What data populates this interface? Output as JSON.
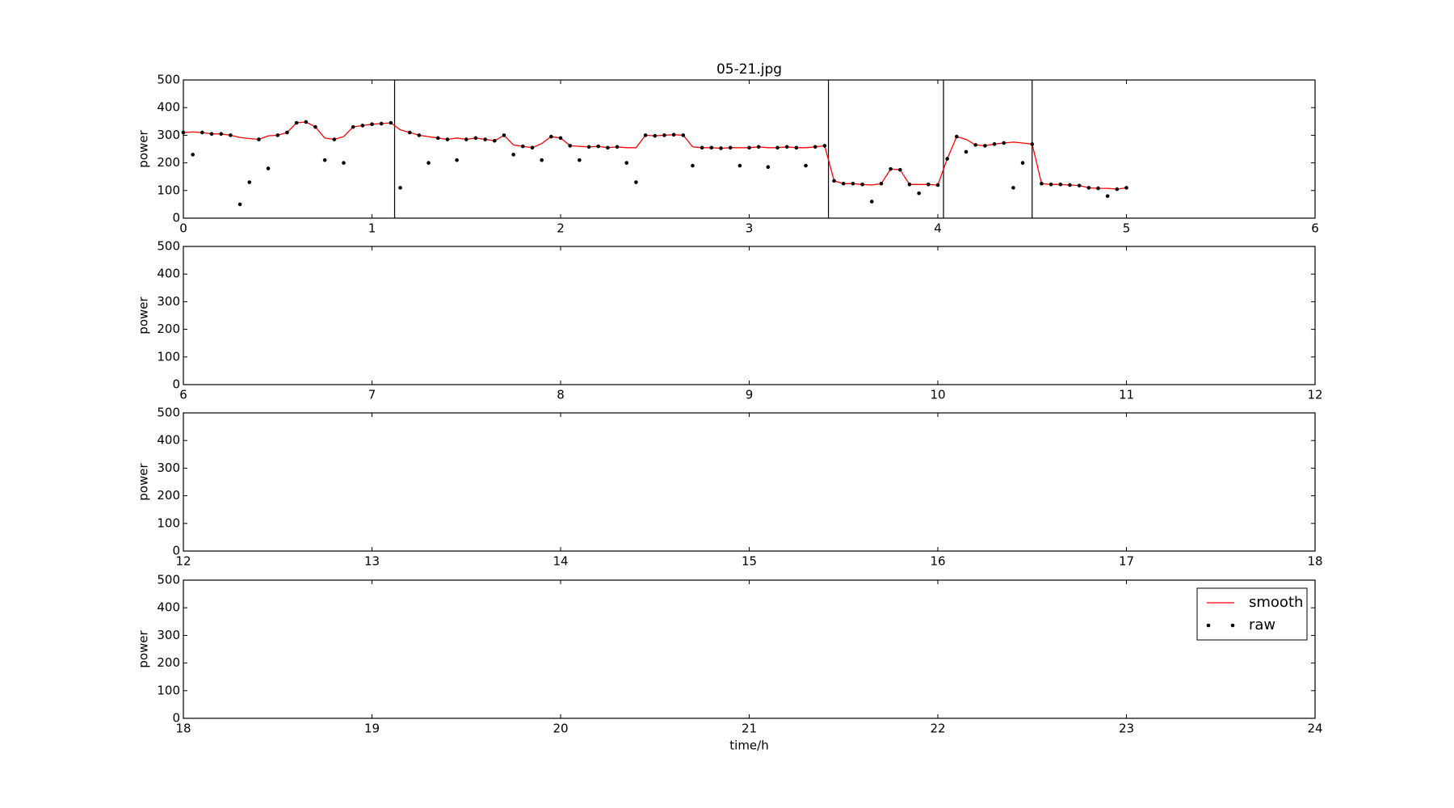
{
  "chart_data": [
    {
      "type": "line",
      "title": "05-21.jpg",
      "ylabel": "power",
      "xlim": [
        0,
        6
      ],
      "xticks": [
        0,
        1,
        2,
        3,
        4,
        5,
        6
      ],
      "ylim": [
        0,
        500
      ],
      "yticks": [
        0,
        100,
        200,
        300,
        400,
        500
      ],
      "x": [
        0,
        0.05,
        0.1,
        0.15,
        0.2,
        0.25,
        0.3,
        0.35,
        0.4,
        0.45,
        0.5,
        0.55,
        0.6,
        0.65,
        0.7,
        0.75,
        0.8,
        0.85,
        0.9,
        0.95,
        1.0,
        1.05,
        1.1,
        1.15,
        1.2,
        1.25,
        1.3,
        1.35,
        1.4,
        1.45,
        1.5,
        1.55,
        1.6,
        1.65,
        1.7,
        1.75,
        1.8,
        1.85,
        1.9,
        1.95,
        2.0,
        2.05,
        2.1,
        2.15,
        2.2,
        2.25,
        2.3,
        2.35,
        2.4,
        2.45,
        2.5,
        2.55,
        2.6,
        2.65,
        2.7,
        2.75,
        2.8,
        2.85,
        2.9,
        2.95,
        3.0,
        3.05,
        3.1,
        3.15,
        3.2,
        3.25,
        3.3,
        3.35,
        3.4,
        3.45,
        3.5,
        3.55,
        3.6,
        3.65,
        3.7,
        3.75,
        3.8,
        3.85,
        3.9,
        3.95,
        4.0,
        4.05,
        4.1,
        4.15,
        4.2,
        4.25,
        4.3,
        4.35,
        4.4,
        4.45,
        4.5,
        4.55,
        4.6,
        4.65,
        4.7,
        4.75,
        4.8,
        4.85,
        4.9,
        4.95,
        5.0
      ],
      "series": [
        {
          "name": "smooth",
          "color": "#ff0000",
          "style": "line",
          "values": [
            310,
            312,
            310,
            305,
            305,
            300,
            292,
            288,
            285,
            298,
            300,
            310,
            345,
            348,
            330,
            290,
            285,
            295,
            330,
            335,
            340,
            342,
            345,
            320,
            310,
            300,
            295,
            290,
            285,
            290,
            285,
            290,
            285,
            280,
            300,
            265,
            260,
            255,
            270,
            295,
            290,
            262,
            260,
            258,
            260,
            255,
            258,
            255,
            255,
            300,
            298,
            300,
            302,
            300,
            258,
            255,
            255,
            253,
            255,
            255,
            255,
            258,
            255,
            255,
            258,
            255,
            255,
            258,
            262,
            135,
            125,
            125,
            122,
            120,
            125,
            178,
            175,
            122,
            122,
            122,
            120,
            215,
            295,
            285,
            265,
            262,
            268,
            272,
            275,
            272,
            268,
            125,
            122,
            122,
            120,
            118,
            110,
            108,
            108,
            105,
            110
          ]
        },
        {
          "name": "raw",
          "color": "#000000",
          "style": "points",
          "values": [
            310,
            230,
            310,
            305,
            305,
            300,
            50,
            130,
            285,
            180,
            300,
            310,
            345,
            348,
            330,
            210,
            285,
            200,
            330,
            335,
            340,
            342,
            345,
            110,
            310,
            300,
            200,
            290,
            285,
            210,
            285,
            290,
            285,
            280,
            300,
            230,
            260,
            255,
            210,
            295,
            290,
            262,
            210,
            258,
            260,
            255,
            258,
            200,
            130,
            300,
            298,
            300,
            302,
            300,
            190,
            255,
            255,
            253,
            255,
            190,
            255,
            258,
            185,
            255,
            258,
            255,
            190,
            258,
            262,
            135,
            125,
            125,
            122,
            60,
            125,
            178,
            175,
            122,
            90,
            122,
            120,
            215,
            295,
            240,
            265,
            262,
            268,
            272,
            110,
            200,
            268,
            125,
            122,
            122,
            120,
            118,
            110,
            108,
            80,
            105,
            110
          ]
        }
      ],
      "vlines": [
        1.12,
        3.42,
        4.03,
        4.5
      ]
    },
    {
      "type": "line",
      "ylabel": "power",
      "xlim": [
        6,
        12
      ],
      "xticks": [
        6,
        7,
        8,
        9,
        10,
        11,
        12
      ],
      "ylim": [
        0,
        500
      ],
      "yticks": [
        0,
        100,
        200,
        300,
        400,
        500
      ]
    },
    {
      "type": "line",
      "ylabel": "power",
      "xlim": [
        12,
        18
      ],
      "xticks": [
        12,
        13,
        14,
        15,
        16,
        17,
        18
      ],
      "ylim": [
        0,
        500
      ],
      "yticks": [
        0,
        100,
        200,
        300,
        400,
        500
      ]
    },
    {
      "type": "line",
      "ylabel": "power",
      "xlabel": "time/h",
      "xlim": [
        18,
        24
      ],
      "xticks": [
        18,
        19,
        20,
        21,
        22,
        23,
        24
      ],
      "ylim": [
        0,
        500
      ],
      "yticks": [
        0,
        100,
        200,
        300,
        400,
        500
      ],
      "legend": "upper right"
    }
  ]
}
